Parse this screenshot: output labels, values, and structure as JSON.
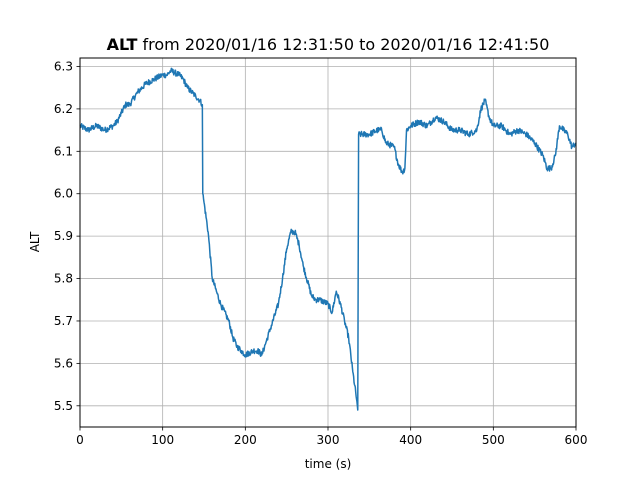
{
  "chart_data": {
    "type": "line",
    "title_bold": "ALT",
    "title_rest": " from 2020/01/16 12:31:50 to 2020/01/16 12:41:50",
    "xlabel": "time (s)",
    "ylabel": "ALT",
    "xlim": [
      0,
      600
    ],
    "ylim": [
      5.45,
      6.32
    ],
    "xticks": [
      0,
      100,
      200,
      300,
      400,
      500,
      600
    ],
    "yticks": [
      5.5,
      5.6,
      5.7,
      5.8,
      5.9,
      6.0,
      6.1,
      6.2,
      6.3
    ],
    "grid": true,
    "series": [
      {
        "color": "#1f77b4",
        "x": [
          0,
          10,
          20,
          30,
          40,
          45,
          50,
          55,
          60,
          70,
          80,
          90,
          100,
          105,
          110,
          120,
          125,
          130,
          135,
          140,
          145,
          148,
          148.5,
          150,
          155,
          160,
          165,
          170,
          180,
          185,
          190,
          195,
          200,
          210,
          215,
          220,
          225,
          230,
          240,
          245,
          250,
          255,
          260,
          265,
          270,
          280,
          285,
          290,
          300,
          305,
          310,
          315,
          320,
          325,
          330,
          335,
          336,
          337,
          340,
          350,
          360,
          365,
          370,
          380,
          385,
          390,
          393,
          395,
          400,
          410,
          420,
          430,
          440,
          450,
          460,
          470,
          480,
          485,
          490,
          495,
          500,
          510,
          520,
          530,
          540,
          550,
          560,
          565,
          570,
          575,
          580,
          590,
          595,
          600
        ],
        "y": [
          6.16,
          6.15,
          6.16,
          6.15,
          6.16,
          6.17,
          6.19,
          6.21,
          6.21,
          6.24,
          6.26,
          6.27,
          6.28,
          6.28,
          6.29,
          6.28,
          6.27,
          6.25,
          6.24,
          6.23,
          6.22,
          6.21,
          6.0,
          5.98,
          5.91,
          5.8,
          5.77,
          5.74,
          5.7,
          5.66,
          5.64,
          5.63,
          5.62,
          5.63,
          5.63,
          5.62,
          5.65,
          5.68,
          5.74,
          5.8,
          5.87,
          5.91,
          5.91,
          5.88,
          5.83,
          5.76,
          5.75,
          5.75,
          5.74,
          5.72,
          5.77,
          5.74,
          5.7,
          5.66,
          5.58,
          5.51,
          5.49,
          6.14,
          6.14,
          6.14,
          6.15,
          6.15,
          6.12,
          6.11,
          6.07,
          6.05,
          6.06,
          6.15,
          6.16,
          6.17,
          6.16,
          6.18,
          6.17,
          6.15,
          6.15,
          6.14,
          6.15,
          6.2,
          6.22,
          6.18,
          6.16,
          6.16,
          6.14,
          6.15,
          6.14,
          6.12,
          6.09,
          6.06,
          6.06,
          6.09,
          6.16,
          6.14,
          6.11,
          6.12
        ]
      }
    ]
  }
}
